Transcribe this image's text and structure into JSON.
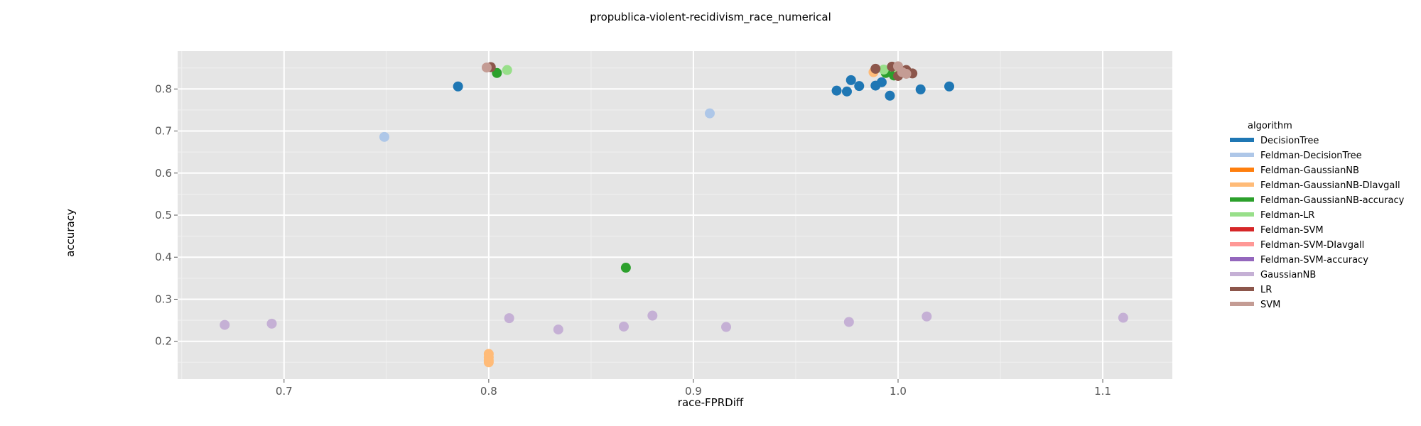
{
  "chart_data": {
    "type": "scatter",
    "title": "propublica-violent-recidivism_race_numerical",
    "xlabel": "race-FPRDiff",
    "ylabel": "accuracy",
    "xlim": [
      0.648,
      1.134
    ],
    "ylim": [
      0.11,
      0.89
    ],
    "x_ticks": [
      0.7,
      0.8,
      0.9,
      1.0,
      1.1
    ],
    "x_tick_labels": [
      "0.7",
      "0.8",
      "0.9",
      "1.0",
      "1.1"
    ],
    "y_ticks": [
      0.2,
      0.3,
      0.4,
      0.5,
      0.6,
      0.7,
      0.8
    ],
    "y_tick_labels": [
      "0.2",
      "0.3",
      "0.4",
      "0.5",
      "0.6",
      "0.7",
      "0.8"
    ],
    "grid": true,
    "legend_title": "algorithm",
    "legend_position": "right",
    "series": [
      {
        "name": "DecisionTree",
        "color": "#1f77b4",
        "points": [
          [
            0.785,
            0.806
          ],
          [
            0.97,
            0.796
          ],
          [
            0.975,
            0.794
          ],
          [
            0.977,
            0.821
          ],
          [
            0.981,
            0.807
          ],
          [
            0.989,
            0.808
          ],
          [
            0.992,
            0.816
          ],
          [
            0.996,
            0.784
          ],
          [
            1.011,
            0.799
          ],
          [
            1.025,
            0.806
          ]
        ]
      },
      {
        "name": "Feldman-DecisionTree",
        "color": "#aec7e8",
        "points": [
          [
            0.749,
            0.686
          ],
          [
            0.908,
            0.742
          ]
        ]
      },
      {
        "name": "Feldman-GaussianNB",
        "color": "#ff7f0e",
        "points": []
      },
      {
        "name": "Feldman-GaussianNB-DIavgall",
        "color": "#ffbb78",
        "points": [
          [
            0.8,
            0.17
          ],
          [
            0.8,
            0.162
          ],
          [
            0.8,
            0.155
          ],
          [
            0.8,
            0.15
          ],
          [
            0.988,
            0.84
          ]
        ]
      },
      {
        "name": "Feldman-GaussianNB-accuracy",
        "color": "#2ca02c",
        "points": [
          [
            0.804,
            0.838
          ],
          [
            0.867,
            0.375
          ],
          [
            0.994,
            0.838
          ],
          [
            0.998,
            0.832
          ],
          [
            1.001,
            0.843
          ]
        ]
      },
      {
        "name": "Feldman-LR",
        "color": "#98df8a",
        "points": [
          [
            0.809,
            0.845
          ],
          [
            0.993,
            0.846
          ],
          [
            1.0,
            0.848
          ]
        ]
      },
      {
        "name": "Feldman-SVM",
        "color": "#d62728",
        "points": []
      },
      {
        "name": "Feldman-SVM-DIavgall",
        "color": "#ff9896",
        "points": []
      },
      {
        "name": "Feldman-SVM-accuracy",
        "color": "#9467bd",
        "points": []
      },
      {
        "name": "GaussianNB",
        "color": "#c5b0d5",
        "points": [
          [
            0.671,
            0.239
          ],
          [
            0.694,
            0.242
          ],
          [
            0.81,
            0.255
          ],
          [
            0.834,
            0.228
          ],
          [
            0.866,
            0.235
          ],
          [
            0.88,
            0.261
          ],
          [
            0.916,
            0.234
          ],
          [
            0.976,
            0.246
          ],
          [
            1.014,
            0.259
          ],
          [
            1.11,
            0.256
          ]
        ]
      },
      {
        "name": "LR",
        "color": "#8c564b",
        "points": [
          [
            0.801,
            0.852
          ],
          [
            0.989,
            0.848
          ],
          [
            0.997,
            0.853
          ],
          [
            1.0,
            0.831
          ],
          [
            1.004,
            0.845
          ],
          [
            1.007,
            0.837
          ]
        ]
      },
      {
        "name": "SVM",
        "color": "#c49c94",
        "points": [
          [
            0.799,
            0.851
          ],
          [
            1.0,
            0.854
          ],
          [
            1.002,
            0.84
          ],
          [
            1.004,
            0.836
          ]
        ]
      }
    ]
  }
}
